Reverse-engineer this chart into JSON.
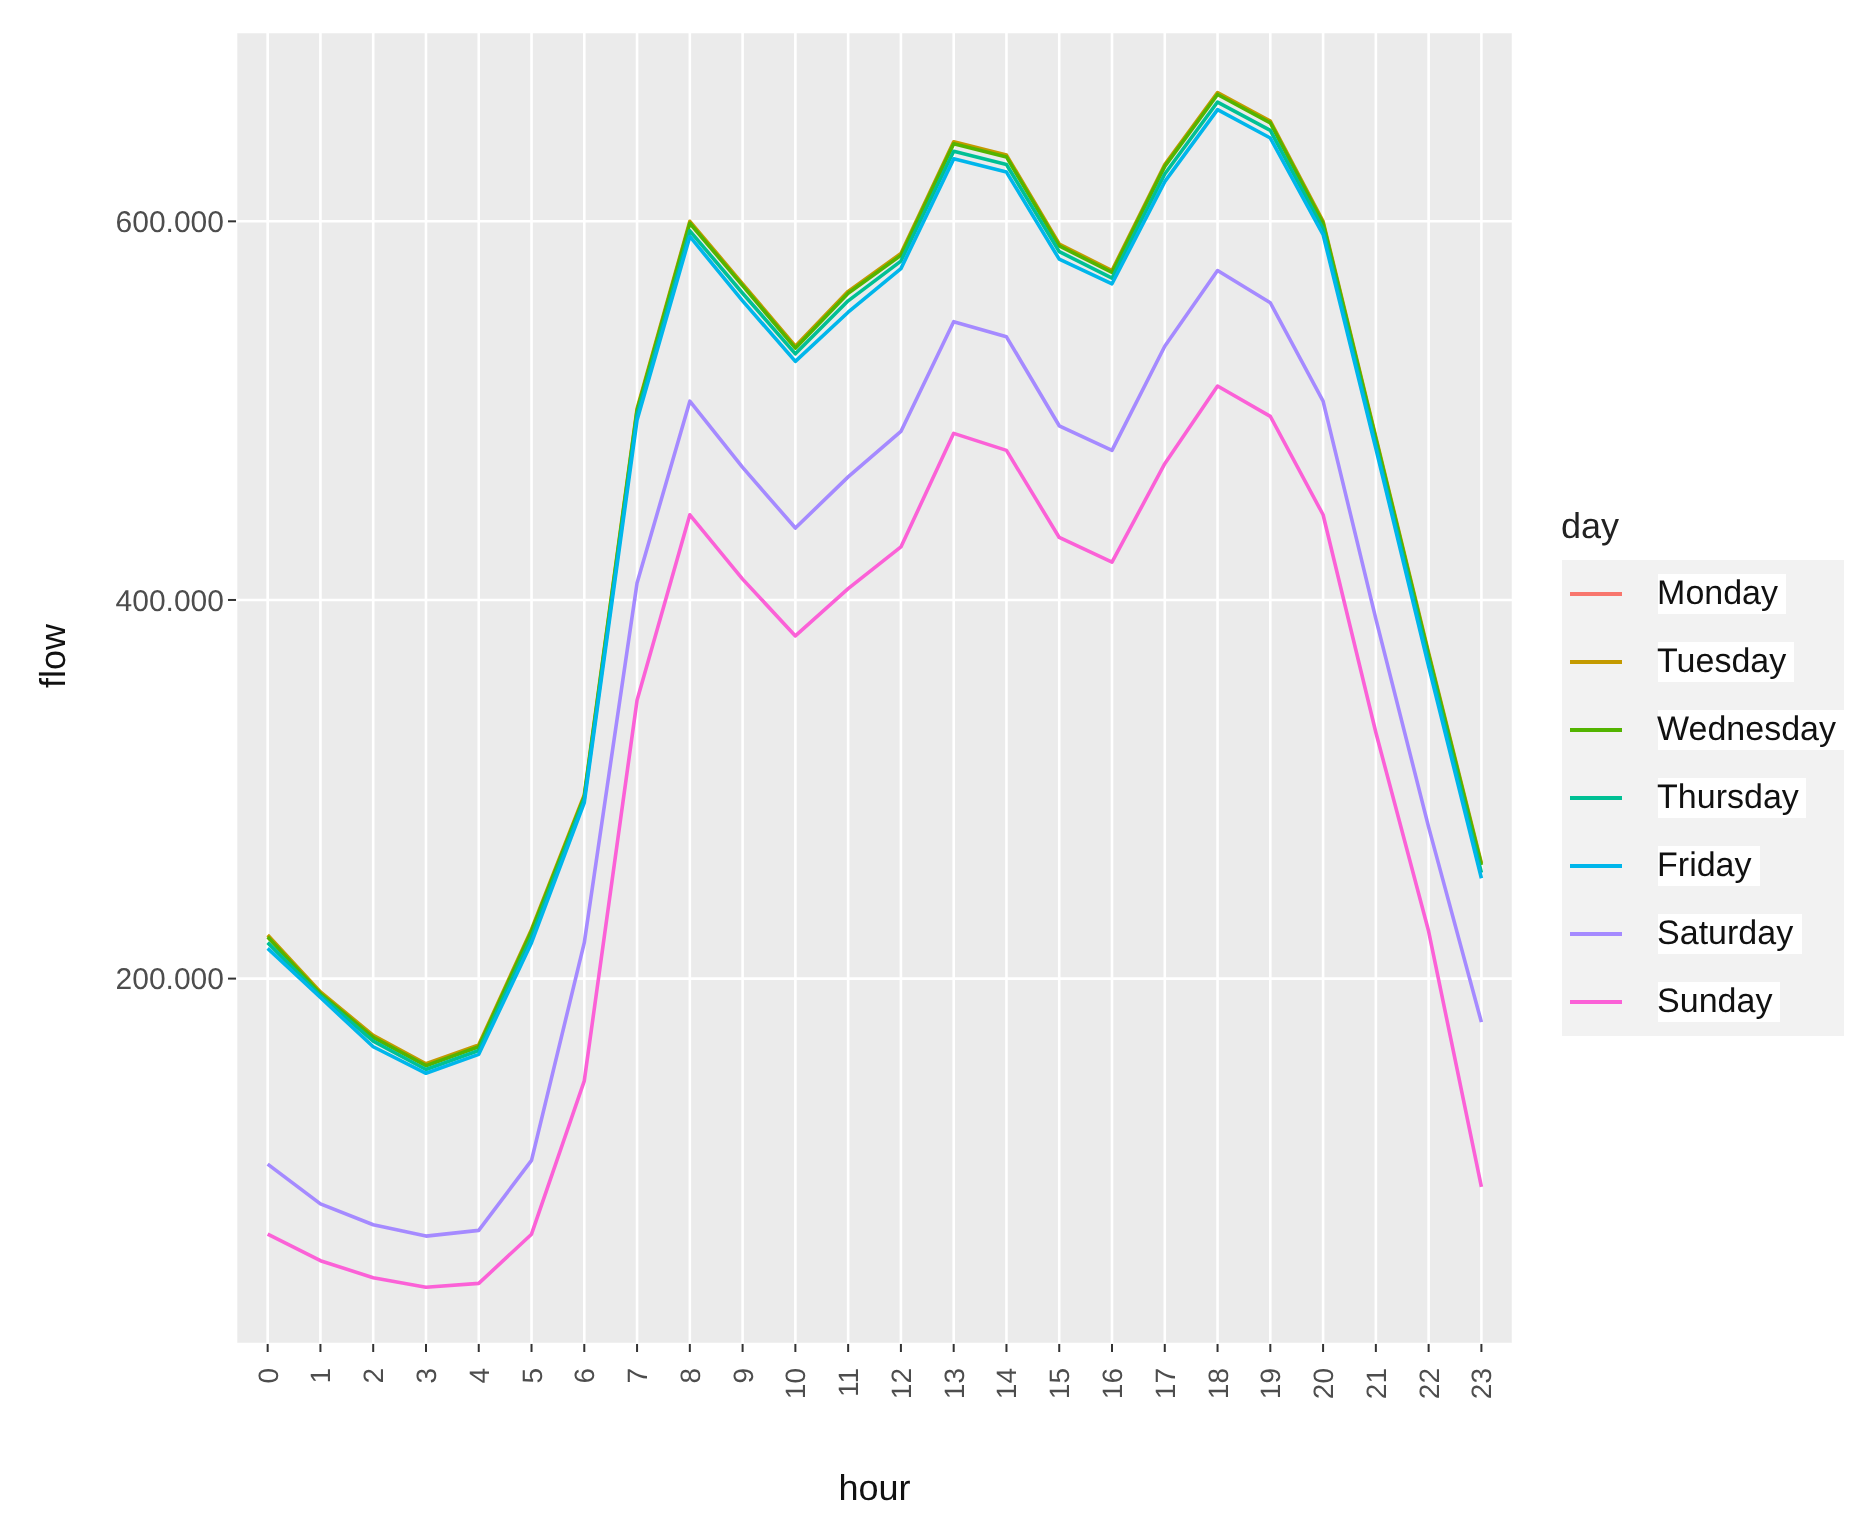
{
  "chart_data": {
    "type": "line",
    "xlabel": "hour",
    "ylabel": "flow",
    "legend_title": "day",
    "legend": "right",
    "grid": true,
    "marker": "none",
    "line_style": "solid",
    "categories": [
      "0",
      "1",
      "2",
      "3",
      "4",
      "5",
      "6",
      "7",
      "8",
      "9",
      "10",
      "11",
      "12",
      "13",
      "14",
      "15",
      "16",
      "17",
      "18",
      "19",
      "20",
      "21",
      "22",
      "23"
    ],
    "ylim": [
      7000,
      700000
    ],
    "yticks": [
      {
        "value": 200000,
        "label": "200.000"
      },
      {
        "value": 400000,
        "label": "400.000"
      },
      {
        "value": 600000,
        "label": "600.000"
      }
    ],
    "series": [
      {
        "name": "Monday",
        "color": "#f8766d",
        "values": [
          null,
          null,
          null,
          null,
          null,
          null,
          null,
          null,
          null,
          null,
          null,
          null,
          null,
          null,
          null,
          null,
          null,
          null,
          null,
          null,
          null,
          null,
          null,
          null
        ]
      },
      {
        "name": "Tuesday",
        "color": "#c49a00",
        "values": [
          223000,
          193000,
          170000,
          155000,
          165000,
          226000,
          297000,
          501000,
          600000,
          567000,
          534000,
          563000,
          583000,
          642000,
          635000,
          588000,
          574000,
          630000,
          668000,
          653000,
          600000,
          486000,
          372000,
          261000
        ]
      },
      {
        "name": "Wednesday",
        "color": "#53b400",
        "values": [
          222000,
          192000,
          169000,
          154000,
          164000,
          225000,
          296000,
          500000,
          599000,
          566000,
          533000,
          562000,
          582000,
          641000,
          634000,
          587000,
          573000,
          629000,
          667000,
          652000,
          599000,
          485000,
          371000,
          260000
        ]
      },
      {
        "name": "Thursday",
        "color": "#00c094",
        "values": [
          219000,
          191000,
          167000,
          152000,
          162000,
          222000,
          295000,
          498000,
          595000,
          562000,
          530000,
          558000,
          579000,
          637000,
          630000,
          584000,
          570000,
          625000,
          663000,
          648000,
          596000,
          482000,
          368000,
          256000
        ]
      },
      {
        "name": "Friday",
        "color": "#00b6eb",
        "values": [
          216000,
          190000,
          164000,
          150000,
          160000,
          219000,
          293000,
          495000,
          592000,
          558000,
          526000,
          552000,
          575000,
          633000,
          626000,
          580000,
          567000,
          621000,
          659000,
          644000,
          593000,
          480000,
          365000,
          253000
        ]
      },
      {
        "name": "Saturday",
        "color": "#a58aff",
        "values": [
          102000,
          81000,
          70000,
          64000,
          67000,
          104000,
          219000,
          409000,
          505000,
          470000,
          438000,
          465000,
          489000,
          547000,
          539000,
          492000,
          479000,
          534000,
          574000,
          557000,
          505000,
          390000,
          280000,
          177000
        ]
      },
      {
        "name": "Sunday",
        "color": "#fb61d7",
        "values": [
          65000,
          51000,
          42000,
          37000,
          39000,
          65000,
          146000,
          347000,
          445000,
          411000,
          381000,
          406000,
          428000,
          488000,
          479000,
          433000,
          420000,
          472000,
          513000,
          497000,
          445000,
          330000,
          225000,
          90000
        ]
      }
    ]
  }
}
